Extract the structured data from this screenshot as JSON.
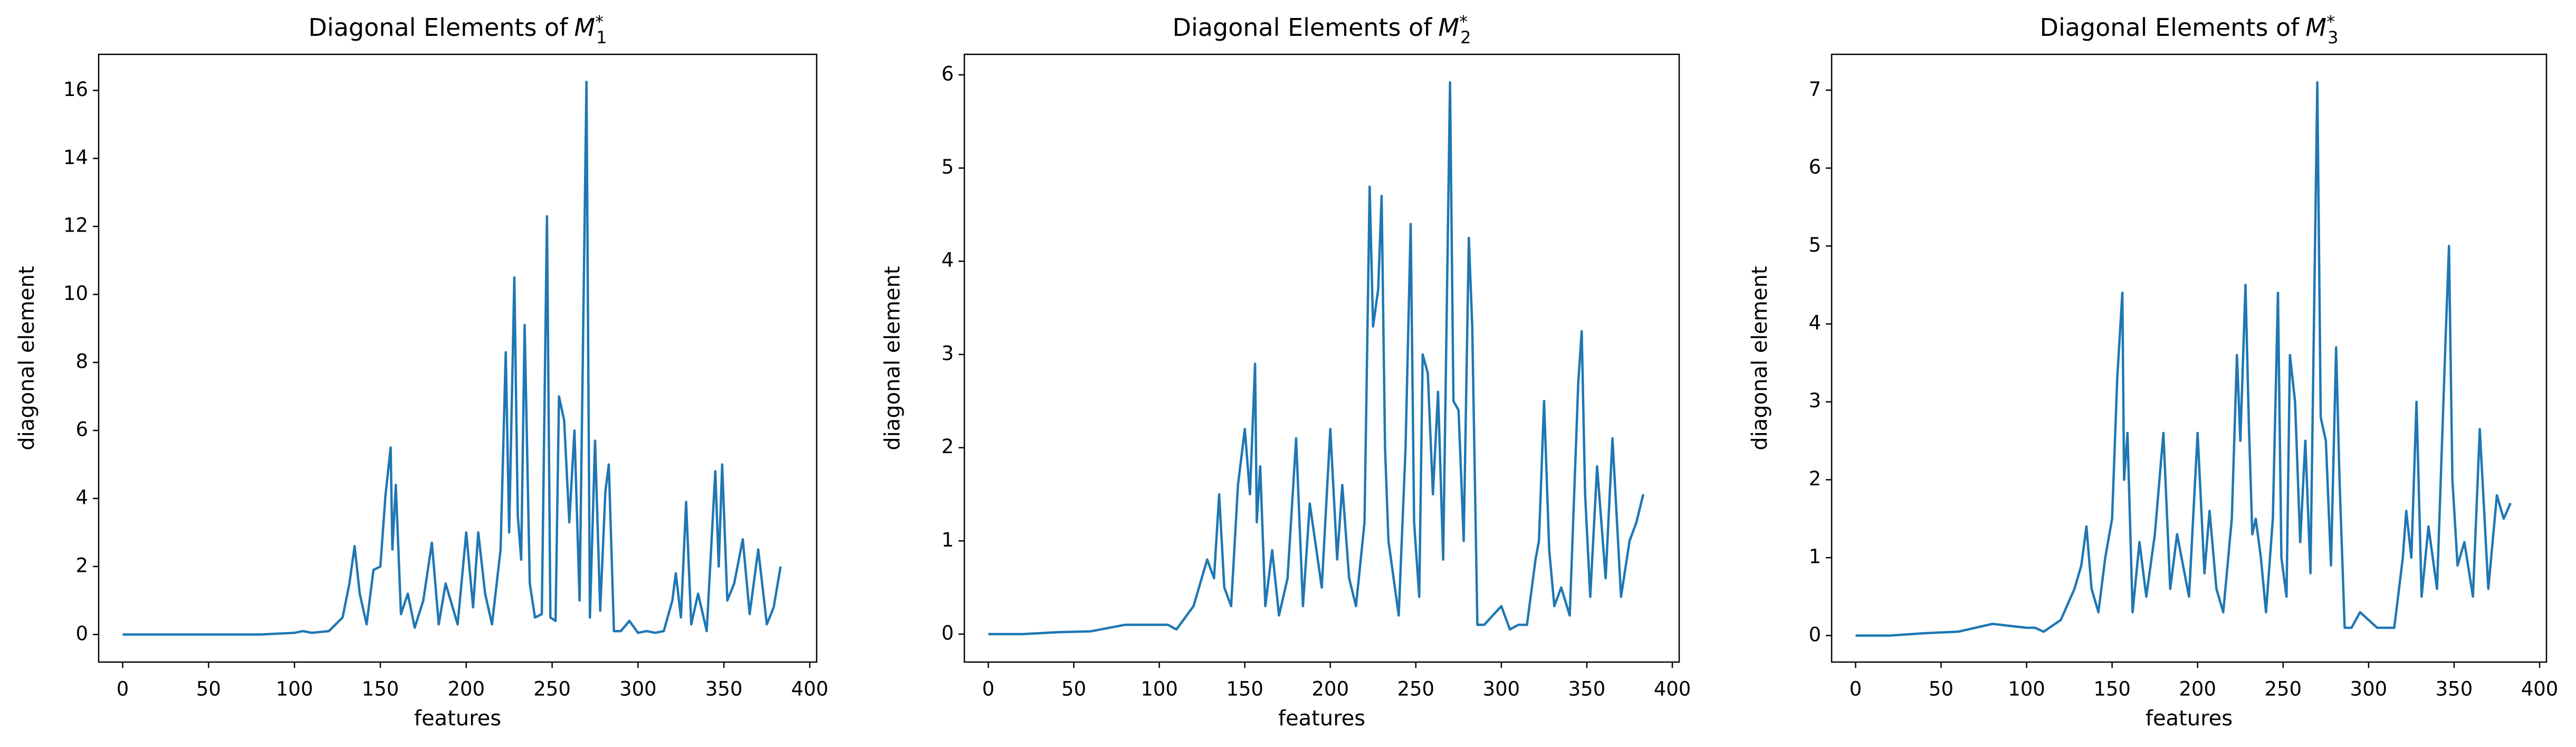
{
  "chart_data": [
    {
      "type": "line",
      "title": {
        "text": "Diagonal Elements of",
        "symbol": "M",
        "subscript": "1",
        "superscript": "*"
      },
      "x_label": "features",
      "y_label": "diagonal element",
      "x": [
        0,
        20,
        40,
        60,
        80,
        100,
        105,
        110,
        120,
        128,
        132,
        135,
        138,
        142,
        146,
        150,
        153,
        156,
        157,
        159,
        162,
        166,
        170,
        175,
        180,
        184,
        188,
        195,
        200,
        204,
        207,
        211,
        215,
        220,
        223,
        225,
        228,
        230,
        232,
        234,
        237,
        240,
        244,
        247,
        249,
        252,
        254,
        257,
        260,
        263,
        266,
        270,
        272,
        275,
        278,
        281,
        283,
        286,
        290,
        295,
        300,
        305,
        310,
        315,
        320,
        322,
        325,
        328,
        331,
        335,
        340,
        345,
        347,
        349,
        352,
        356,
        361,
        365,
        370,
        375,
        379,
        383
      ],
      "values": [
        0,
        0,
        0,
        0,
        0,
        0.05,
        0.1,
        0.05,
        0.1,
        0.5,
        1.5,
        2.6,
        1.2,
        0.3,
        1.9,
        2.0,
        4.1,
        5.5,
        2.5,
        4.4,
        0.6,
        1.2,
        0.2,
        1.0,
        2.7,
        0.3,
        1.5,
        0.3,
        3.0,
        0.8,
        3.0,
        1.2,
        0.3,
        2.5,
        8.3,
        3.0,
        10.5,
        3.5,
        2.2,
        9.1,
        1.5,
        0.5,
        0.6,
        12.3,
        0.5,
        0.4,
        7.0,
        6.3,
        3.3,
        6.0,
        1.0,
        16.25,
        0.5,
        5.7,
        0.7,
        4.2,
        5.0,
        0.1,
        0.1,
        0.4,
        0.05,
        0.1,
        0.05,
        0.1,
        1.0,
        1.8,
        0.5,
        3.9,
        0.3,
        1.2,
        0.1,
        4.8,
        2.0,
        5.0,
        1.0,
        1.5,
        2.8,
        0.6,
        2.5,
        0.3,
        0.8,
        2.0
      ],
      "color": "#1f77b4",
      "xlim": [
        -14,
        404
      ],
      "xticks": [
        0,
        50,
        100,
        150,
        200,
        250,
        300,
        350,
        400
      ],
      "ylim": [
        -0.81,
        17.06
      ],
      "yticks": [
        0,
        2,
        4,
        6,
        8,
        10,
        12,
        14,
        16
      ]
    },
    {
      "type": "line",
      "title": {
        "text": "Diagonal Elements of",
        "symbol": "M",
        "subscript": "2",
        "superscript": "*"
      },
      "x_label": "features",
      "y_label": "diagonal element",
      "x": [
        0,
        20,
        40,
        60,
        80,
        100,
        105,
        110,
        120,
        128,
        132,
        135,
        138,
        142,
        146,
        150,
        153,
        156,
        157,
        159,
        162,
        166,
        170,
        175,
        180,
        184,
        188,
        195,
        200,
        204,
        207,
        211,
        215,
        220,
        223,
        225,
        228,
        230,
        232,
        234,
        237,
        240,
        244,
        247,
        249,
        252,
        254,
        257,
        260,
        263,
        266,
        270,
        272,
        275,
        278,
        281,
        283,
        286,
        290,
        295,
        300,
        305,
        310,
        315,
        320,
        322,
        325,
        328,
        331,
        335,
        340,
        345,
        347,
        349,
        352,
        356,
        361,
        365,
        370,
        375,
        379,
        383
      ],
      "values": [
        0,
        0,
        0.02,
        0.03,
        0.1,
        0.1,
        0.1,
        0.05,
        0.3,
        0.8,
        0.6,
        1.5,
        0.5,
        0.3,
        1.6,
        2.2,
        1.5,
        2.9,
        1.2,
        1.8,
        0.3,
        0.9,
        0.2,
        0.6,
        2.1,
        0.3,
        1.4,
        0.5,
        2.2,
        0.8,
        1.6,
        0.6,
        0.3,
        1.2,
        4.8,
        3.3,
        3.7,
        4.7,
        2.0,
        1.0,
        0.6,
        0.2,
        2.0,
        4.4,
        1.2,
        0.4,
        3.0,
        2.8,
        1.5,
        2.6,
        0.8,
        5.92,
        2.5,
        2.4,
        1.0,
        4.25,
        3.3,
        0.1,
        0.1,
        0.2,
        0.3,
        0.05,
        0.1,
        0.1,
        0.8,
        1.0,
        2.5,
        0.9,
        0.3,
        0.5,
        0.2,
        2.7,
        3.25,
        1.5,
        0.4,
        1.8,
        0.6,
        2.1,
        0.4,
        1.0,
        1.2,
        1.5
      ],
      "color": "#1f77b4",
      "xlim": [
        -14,
        404
      ],
      "xticks": [
        0,
        50,
        100,
        150,
        200,
        250,
        300,
        350,
        400
      ],
      "ylim": [
        -0.3,
        6.22
      ],
      "yticks": [
        0,
        1,
        2,
        3,
        4,
        5,
        6
      ]
    },
    {
      "type": "line",
      "title": {
        "text": "Diagonal Elements of",
        "symbol": "M",
        "subscript": "3",
        "superscript": "*"
      },
      "x_label": "features",
      "y_label": "diagonal element",
      "x": [
        0,
        20,
        40,
        60,
        80,
        100,
        105,
        110,
        120,
        128,
        132,
        135,
        138,
        142,
        146,
        150,
        153,
        156,
        157,
        159,
        162,
        166,
        170,
        175,
        180,
        184,
        188,
        195,
        200,
        204,
        207,
        211,
        215,
        220,
        223,
        225,
        228,
        230,
        232,
        234,
        237,
        240,
        244,
        247,
        249,
        252,
        254,
        257,
        260,
        263,
        266,
        270,
        272,
        275,
        278,
        281,
        283,
        286,
        290,
        295,
        300,
        305,
        310,
        315,
        320,
        322,
        325,
        328,
        331,
        335,
        340,
        345,
        347,
        349,
        352,
        356,
        361,
        365,
        370,
        375,
        379,
        383
      ],
      "values": [
        0,
        0,
        0.03,
        0.05,
        0.15,
        0.1,
        0.1,
        0.05,
        0.2,
        0.6,
        0.9,
        1.4,
        0.6,
        0.3,
        1.0,
        1.5,
        3.3,
        4.4,
        2.0,
        2.6,
        0.3,
        1.2,
        0.5,
        1.3,
        2.6,
        0.6,
        1.3,
        0.5,
        2.6,
        0.8,
        1.6,
        0.6,
        0.3,
        1.5,
        3.6,
        2.5,
        4.5,
        2.7,
        1.3,
        1.5,
        1.0,
        0.3,
        1.5,
        4.4,
        1.0,
        0.5,
        3.6,
        3.0,
        1.2,
        2.5,
        0.8,
        7.1,
        2.8,
        2.5,
        0.9,
        3.7,
        2.0,
        0.1,
        0.1,
        0.3,
        0.2,
        0.1,
        0.1,
        0.1,
        1.0,
        1.6,
        1.0,
        3.0,
        0.5,
        1.4,
        0.6,
        3.8,
        5.0,
        2.0,
        0.9,
        1.2,
        0.5,
        2.65,
        0.6,
        1.8,
        1.5,
        1.7
      ],
      "color": "#1f77b4",
      "xlim": [
        -14,
        404
      ],
      "xticks": [
        0,
        50,
        100,
        150,
        200,
        250,
        300,
        350,
        400
      ],
      "ylim": [
        -0.34,
        7.46
      ],
      "yticks": [
        0,
        1,
        2,
        3,
        4,
        5,
        6,
        7
      ]
    }
  ]
}
